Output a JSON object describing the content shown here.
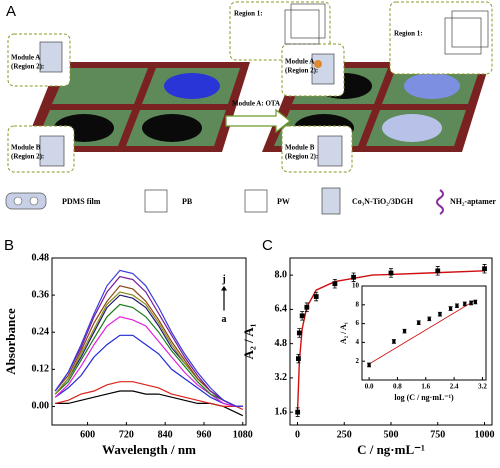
{
  "panel_a": {
    "label": "A",
    "left": {
      "region1": "Region 1:",
      "module_a": [
        "Module A",
        "(Region 2):"
      ],
      "module_b": [
        "Module B",
        "(Region 2):"
      ]
    },
    "arrow_text": "Module A: OTA",
    "right": {
      "region1": "Region 1:",
      "module_a": [
        "Module A",
        "(Region 2):"
      ],
      "module_b": [
        "Module B",
        "(Region 2):"
      ]
    },
    "legend": [
      "PDMS film",
      "PB",
      "PW",
      "Co₃N-TiO₂/3DGH",
      "NH₂-aptamer"
    ]
  },
  "chart_data": [
    {
      "type": "line",
      "panel": "B",
      "x_label": "Wavelength / nm",
      "y_label": "Absorbance",
      "annotations": [
        "j",
        "a"
      ],
      "x": [
        500,
        540,
        580,
        620,
        660,
        700,
        740,
        780,
        820,
        860,
        900,
        940,
        980,
        1020,
        1060,
        1080
      ],
      "xlim": [
        490,
        1090
      ],
      "xticks": [
        600,
        720,
        840,
        960,
        1080
      ],
      "ylim": [
        -0.06,
        0.48
      ],
      "yticks": [
        {
          "value": 0,
          "label": "0.00"
        },
        0.12,
        0.24,
        0.36,
        0.48
      ],
      "series": [
        {
          "color": "#000000",
          "values": [
            0.01,
            0.01,
            0.02,
            0.03,
            0.04,
            0.05,
            0.05,
            0.04,
            0.04,
            0.03,
            0.02,
            0.01,
            0.01,
            0.0,
            -0.02,
            -0.03
          ]
        },
        {
          "color": "#e0201b",
          "values": [
            0.01,
            0.02,
            0.04,
            0.05,
            0.07,
            0.08,
            0.08,
            0.07,
            0.06,
            0.04,
            0.03,
            0.02,
            0.01,
            0.0,
            0.0,
            -0.01
          ]
        },
        {
          "color": "#1f2ad6",
          "values": [
            0.03,
            0.06,
            0.1,
            0.16,
            0.2,
            0.23,
            0.23,
            0.2,
            0.17,
            0.12,
            0.09,
            0.06,
            0.03,
            0.01,
            0.0,
            0.0
          ]
        },
        {
          "color": "#e020e0",
          "values": [
            0.03,
            0.07,
            0.13,
            0.2,
            0.26,
            0.29,
            0.28,
            0.26,
            0.21,
            0.16,
            0.11,
            0.07,
            0.04,
            0.01,
            0.0,
            0.0
          ]
        },
        {
          "color": "#1a7a1a",
          "values": [
            0.04,
            0.08,
            0.15,
            0.22,
            0.29,
            0.33,
            0.32,
            0.29,
            0.24,
            0.18,
            0.13,
            0.08,
            0.04,
            0.02,
            0.0,
            0.0
          ]
        },
        {
          "color": "#1a1a70",
          "values": [
            0.04,
            0.09,
            0.16,
            0.24,
            0.32,
            0.36,
            0.35,
            0.32,
            0.26,
            0.19,
            0.14,
            0.09,
            0.05,
            0.02,
            0.0,
            0.0
          ]
        },
        {
          "color": "#8a8a1a",
          "values": [
            0.04,
            0.09,
            0.17,
            0.25,
            0.33,
            0.37,
            0.36,
            0.33,
            0.27,
            0.2,
            0.14,
            0.09,
            0.05,
            0.02,
            0.0,
            0.0
          ]
        },
        {
          "color": "#8b4513",
          "values": [
            0.05,
            0.1,
            0.18,
            0.27,
            0.34,
            0.39,
            0.38,
            0.34,
            0.28,
            0.21,
            0.15,
            0.09,
            0.05,
            0.02,
            0.0,
            0.0
          ]
        },
        {
          "color": "#7a1a9a",
          "values": [
            0.05,
            0.11,
            0.19,
            0.29,
            0.37,
            0.42,
            0.41,
            0.37,
            0.3,
            0.23,
            0.16,
            0.1,
            0.05,
            0.02,
            0.0,
            0.0
          ]
        },
        {
          "color": "#3a3ae0",
          "values": [
            0.05,
            0.11,
            0.2,
            0.3,
            0.39,
            0.44,
            0.43,
            0.39,
            0.32,
            0.24,
            0.17,
            0.11,
            0.06,
            0.02,
            0.0,
            0.0
          ]
        }
      ]
    },
    {
      "type": "scatter",
      "panel": "C",
      "x_label": "C / ng·mL⁻¹",
      "y_label": "A₂ / A₁",
      "color": "#000000",
      "x": [
        1,
        5,
        10,
        25,
        50,
        100,
        200,
        300,
        500,
        750,
        1000
      ],
      "values": [
        1.6,
        4.1,
        5.3,
        6.1,
        6.5,
        7.0,
        7.6,
        7.9,
        8.1,
        8.2,
        8.3
      ],
      "errors": [
        0.2,
        0.2,
        0.2,
        0.2,
        0.2,
        0.2,
        0.2,
        0.2,
        0.2,
        0.2,
        0.2
      ],
      "fit": {
        "color": "#d01010",
        "x": [
          0,
          10,
          25,
          50,
          100,
          200,
          400,
          700,
          1000
        ],
        "values": [
          1.6,
          4.0,
          5.5,
          6.5,
          7.3,
          7.7,
          8.0,
          8.1,
          8.2
        ]
      },
      "xlim": [
        -40,
        1040
      ],
      "xticks": [
        0,
        250,
        500,
        750,
        1000
      ],
      "ylim": [
        1.0,
        8.8
      ],
      "yticks": [
        1.6,
        3.2,
        4.8,
        6.4,
        {
          "value": 8,
          "label": "8.0"
        }
      ]
    },
    {
      "type": "scatter",
      "x_label": "log (C / ng·mL⁻¹)",
      "y_label": "A₂ / A₁",
      "color": "#000000",
      "x": [
        0,
        0.7,
        1.0,
        1.4,
        1.7,
        2.0,
        2.3,
        2.48,
        2.7,
        2.88,
        3.0
      ],
      "values": [
        1.6,
        4.1,
        5.2,
        6.1,
        6.5,
        7.0,
        7.6,
        7.9,
        8.1,
        8.2,
        8.3
      ],
      "errors": [
        0.2,
        0.2,
        0.2,
        0.2,
        0.2,
        0.2,
        0.2,
        0.2,
        0.2,
        0.2,
        0.2
      ],
      "fit": {
        "color": "#d01010",
        "x": [
          0,
          3.0
        ],
        "values": [
          1.7,
          8.5
        ]
      },
      "xlim": [
        -0.2,
        3.3
      ],
      "xticks": [
        {
          "value": 0,
          "label": "0.0"
        },
        0.8,
        1.6,
        2.4,
        3.2
      ],
      "ylim": [
        0,
        10
      ],
      "yticks": [
        2,
        4,
        6,
        8,
        10
      ]
    }
  ]
}
